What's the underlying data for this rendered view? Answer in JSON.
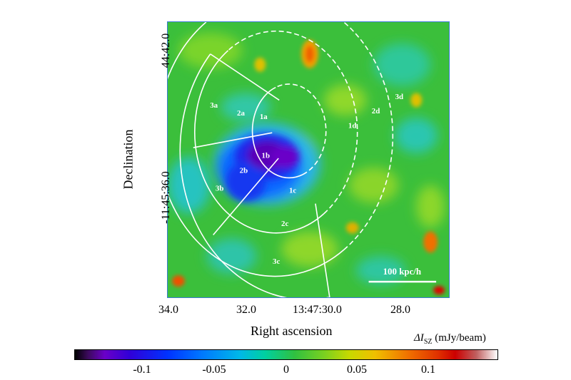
{
  "chart_data": {
    "type": "heatmap",
    "xlabel": "Right ascension",
    "ylabel": "Declination",
    "x_ticks": [
      "34.0",
      "32.0",
      "13:47:30.0",
      "28.0"
    ],
    "y_ticks": [
      "44:42.0",
      "-11:45:36.0"
    ],
    "scale_bar_label": "100 kpc/h",
    "colorbar": {
      "label": "ΔI",
      "label_sub": "SZ",
      "label_unit": "(mJy/beam)",
      "ticks": [
        "-0.1",
        "-0.05",
        "0",
        "0.05",
        "0.1"
      ],
      "tick_values": [
        -0.1,
        -0.05,
        0,
        0.05,
        0.1
      ],
      "range": [
        -0.14,
        0.15
      ]
    },
    "regions": [
      "1a",
      "1b",
      "1c",
      "1d",
      "2a",
      "2b",
      "2c",
      "2d",
      "3a",
      "3b",
      "3c",
      "3d"
    ],
    "colors": {
      "background": "#3bbf3b",
      "decrement_core": "#5a00b0",
      "decrement_outer": "#1a4fff",
      "positive_spot": "#ff6a00",
      "contour_lines": "#ffffff"
    }
  }
}
